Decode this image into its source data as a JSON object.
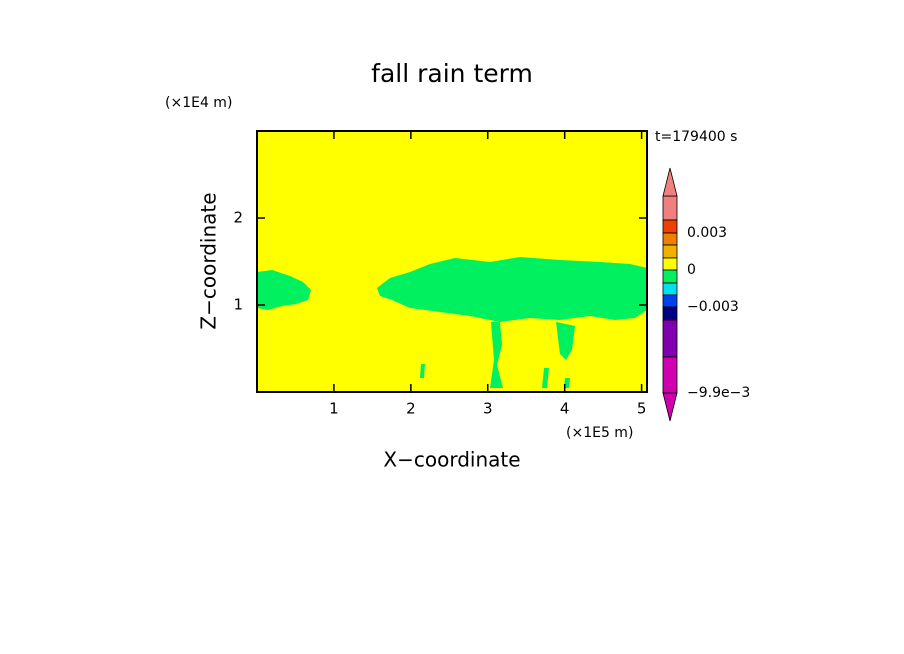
{
  "chart_data": {
    "type": "contour",
    "title": "fall rain term",
    "x_label": "X−coordinate",
    "y_label": "Z−coordinate",
    "x_unit": "(×1E5 m)",
    "y_unit": "(×1E4 m)",
    "annotation": "t=179400 s",
    "xlim": [
      0,
      5.07
    ],
    "xticks": [
      1,
      2,
      3,
      4,
      5
    ],
    "ylim": [
      0,
      3
    ],
    "yticks": [
      1,
      2
    ],
    "background_color": "#ffff00",
    "region_color": "#00f060",
    "colorbar": {
      "levels": [
        0.005,
        0.004,
        0.003,
        0.002,
        0.001,
        0,
        -0.001,
        -0.002,
        -0.003,
        -0.0033,
        -0.0066,
        -0.0099
      ],
      "colors": [
        "#f08080",
        "#f04000",
        "#f08000",
        "#f0b000",
        "#ffff00",
        "#00f060",
        "#00e0f0",
        "#0040f0",
        "#000080",
        "#8000b0",
        "#d000b0"
      ],
      "top_color": "#f08080",
      "bottom_color": "#d000b0",
      "ticks": [
        {
          "value": 0.003,
          "label": "0.003"
        },
        {
          "value": 0,
          "label": "0"
        },
        {
          "value": -0.003,
          "label": "−0.003"
        },
        {
          "value": -0.0099,
          "label": "−9.9e−3"
        }
      ]
    }
  }
}
